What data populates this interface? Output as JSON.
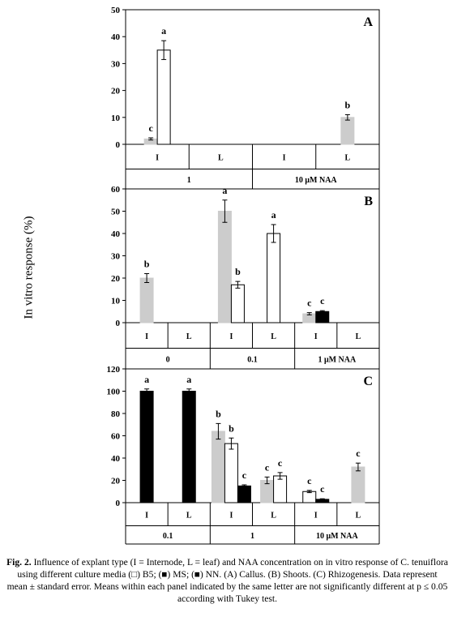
{
  "y_axis_label": "In vitro response (%)",
  "colors": {
    "B5": "#ffffff",
    "MS": "#cccccc",
    "NN": "#000000"
  },
  "chart_data": [
    {
      "type": "bar",
      "panel": "A",
      "ylim": [
        0,
        50
      ],
      "yticks": [
        0,
        10,
        20,
        30,
        40,
        50
      ],
      "groups": [
        {
          "label": "1",
          "categories": [
            {
              "label": "I",
              "bars": [
                {
                  "series": "MS",
                  "value": 2,
                  "err": 0.4,
                  "letter": "c"
                },
                {
                  "series": "B5",
                  "value": 35,
                  "err": 3.5,
                  "letter": "a"
                }
              ]
            },
            {
              "label": "L",
              "bars": []
            }
          ]
        },
        {
          "label": "10 μM NAA",
          "categories": [
            {
              "label": "I",
              "bars": []
            },
            {
              "label": "L",
              "bars": [
                {
                  "series": "MS",
                  "value": 10,
                  "err": 1.0,
                  "letter": "b"
                }
              ]
            }
          ]
        }
      ]
    },
    {
      "type": "bar",
      "panel": "B",
      "ylim": [
        0,
        60
      ],
      "yticks": [
        0,
        10,
        20,
        30,
        40,
        50,
        60
      ],
      "groups": [
        {
          "label": "0",
          "categories": [
            {
              "label": "I",
              "bars": [
                {
                  "series": "MS",
                  "value": 20,
                  "err": 2,
                  "letter": "b"
                }
              ]
            },
            {
              "label": "L",
              "bars": []
            }
          ]
        },
        {
          "label": "0.1",
          "categories": [
            {
              "label": "I",
              "bars": [
                {
                  "series": "MS",
                  "value": 50,
                  "err": 5,
                  "letter": "a"
                },
                {
                  "series": "B5",
                  "value": 17,
                  "err": 1.5,
                  "letter": "b"
                }
              ]
            },
            {
              "label": "L",
              "bars": [
                {
                  "series": "B5",
                  "value": 40,
                  "err": 4,
                  "letter": "a"
                }
              ]
            }
          ]
        },
        {
          "label": "1 μM NAA",
          "categories": [
            {
              "label": "I",
              "bars": [
                {
                  "series": "MS",
                  "value": 4,
                  "err": 0.5,
                  "letter": "c"
                },
                {
                  "series": "NN",
                  "value": 5,
                  "err": 0.4,
                  "letter": "c"
                }
              ]
            },
            {
              "label": "L",
              "bars": []
            }
          ]
        }
      ]
    },
    {
      "type": "bar",
      "panel": "C",
      "ylim": [
        0,
        120
      ],
      "yticks": [
        0,
        20,
        40,
        60,
        80,
        100,
        120
      ],
      "groups": [
        {
          "label": "0.1",
          "categories": [
            {
              "label": "I",
              "bars": [
                {
                  "series": "NN",
                  "value": 100,
                  "err": 2,
                  "letter": "a"
                }
              ]
            },
            {
              "label": "L",
              "bars": [
                {
                  "series": "NN",
                  "value": 100,
                  "err": 2,
                  "letter": "a"
                }
              ]
            }
          ]
        },
        {
          "label": "1",
          "categories": [
            {
              "label": "I",
              "bars": [
                {
                  "series": "MS",
                  "value": 64,
                  "err": 7,
                  "letter": "b"
                },
                {
                  "series": "B5",
                  "value": 53,
                  "err": 5,
                  "letter": "b"
                },
                {
                  "series": "NN",
                  "value": 15,
                  "err": 1,
                  "letter": "c"
                }
              ]
            },
            {
              "label": "L",
              "bars": [
                {
                  "series": "MS",
                  "value": 20,
                  "err": 3,
                  "letter": "c"
                },
                {
                  "series": "B5",
                  "value": 24,
                  "err": 3,
                  "letter": "c"
                }
              ]
            }
          ]
        },
        {
          "label": "10 μM NAA",
          "categories": [
            {
              "label": "I",
              "bars": [
                {
                  "series": "B5",
                  "value": 10,
                  "err": 1,
                  "letter": "c"
                },
                {
                  "series": "NN",
                  "value": 3,
                  "err": 0.5,
                  "letter": "c"
                }
              ]
            },
            {
              "label": "L",
              "bars": [
                {
                  "series": "MS",
                  "value": 32,
                  "err": 3.5,
                  "letter": "c"
                }
              ]
            }
          ]
        }
      ]
    }
  ],
  "caption": {
    "fig_label": "Fig. 2.",
    "text": " Influence of explant type (I = Internode, L = leaf) and NAA concentration on in vitro response of C. tenuiflora using different culture media (□) B5; (■) MS; (■) NN. (A) Callus. (B) Shoots. (C) Rhizogenesis. Data represent mean ± standard error. Means within each panel indicated by the same letter are not significantly different at p ≤ 0.05 according with Tukey test."
  }
}
